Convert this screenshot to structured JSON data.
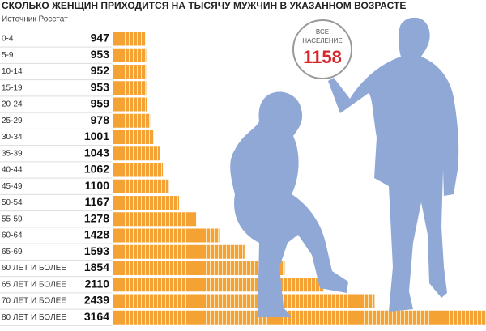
{
  "chart_data": {
    "type": "hbar",
    "title": "СКОЛЬКО ЖЕНЩИН ПРИХОДИТСЯ НА ТЫСЯЧУ МУЖЧИН В УКАЗАННОМ ВОЗРАСТЕ",
    "subtitle": "Источник Росстат",
    "callout": {
      "label": "ВСЕ НАСЕЛЕНИЕ",
      "value": 1158
    },
    "categories": [
      "0-4",
      "5-9",
      "10-14",
      "15-19",
      "20-24",
      "25-29",
      "30-34",
      "35-39",
      "40-44",
      "45-49",
      "50-54",
      "55-59",
      "60-64",
      "65-69",
      "60 ЛЕТ И БОЛЕЕ",
      "65 ЛЕТ И БОЛЕЕ",
      "70 ЛЕТ И БОЛЕЕ",
      "80 ЛЕТ И БОЛЕЕ"
    ],
    "values": [
      947,
      953,
      952,
      953,
      959,
      978,
      1001,
      1043,
      1062,
      1100,
      1167,
      1278,
      1428,
      1593,
      1854,
      2110,
      2439,
      3164
    ],
    "color": "#f4a234",
    "xlim": [
      740,
      3164
    ]
  }
}
